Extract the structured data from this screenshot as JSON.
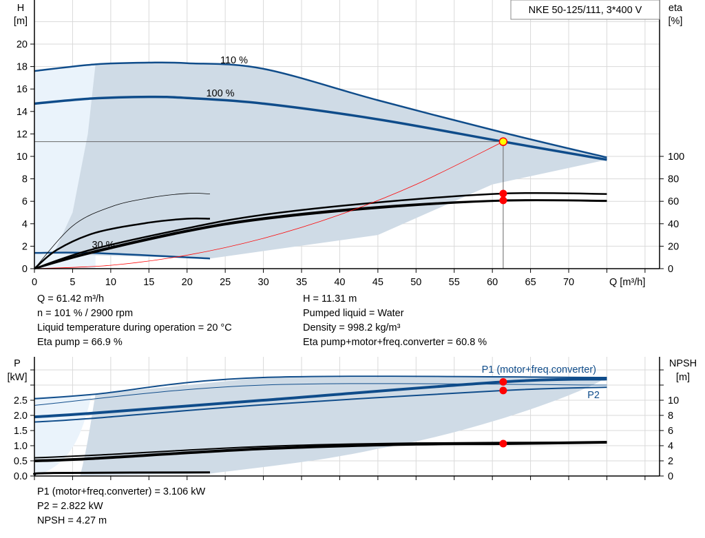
{
  "chart_data": [
    {
      "type": "line",
      "title": "NKE 50-125/111, 3*400 V",
      "xlabel": "Q [m³/h]",
      "ylabel": "H [m]",
      "ylabel_right": "eta [%]",
      "xlim": [
        0,
        82
      ],
      "ylim": [
        0,
        23.9
      ],
      "xticks": [
        0,
        5,
        10,
        15,
        20,
        25,
        30,
        35,
        40,
        45,
        50,
        55,
        60,
        65,
        70
      ],
      "yticks": [
        0,
        2,
        4,
        6,
        8,
        10,
        12,
        14,
        16,
        18,
        20
      ],
      "yticks_right": [
        0,
        20,
        40,
        60,
        80,
        100
      ],
      "grid": true,
      "series": [
        {
          "name": "110 %",
          "kind": "head",
          "x": [
            0,
            8,
            15,
            20,
            30,
            45,
            61.5,
            75
          ],
          "y": [
            17.6,
            18.2,
            18.35,
            18.3,
            17.8,
            15.0,
            12.1,
            9.9
          ]
        },
        {
          "name": "100 %",
          "kind": "head",
          "x": [
            0,
            7.5,
            15,
            20,
            30,
            45,
            61.42,
            75
          ],
          "y": [
            14.7,
            15.15,
            15.3,
            15.2,
            14.7,
            13.3,
            11.31,
            9.7
          ]
        },
        {
          "name": "30 %",
          "kind": "head",
          "x": [
            0,
            7.5,
            23
          ],
          "y": [
            1.4,
            1.4,
            0.9
          ]
        },
        {
          "kind": "eta",
          "x": [
            0,
            5,
            10,
            15,
            20,
            23
          ],
          "y": [
            0,
            38,
            55,
            63,
            67,
            66.5
          ]
        },
        {
          "kind": "eta",
          "x": [
            0,
            3,
            8,
            15,
            20,
            23
          ],
          "y": [
            0,
            17,
            32,
            41,
            44.5,
            44.5
          ]
        },
        {
          "kind": "eta",
          "x": [
            0,
            7.5,
            20,
            30,
            45,
            61.42,
            75
          ],
          "y": [
            0,
            17,
            36,
            48,
            59,
            66.9,
            66.5
          ]
        },
        {
          "kind": "eta",
          "x": [
            0,
            7.5,
            20,
            30,
            45,
            61.42,
            75
          ],
          "y": [
            0,
            15,
            34,
            45,
            55,
            60.8,
            60.5
          ]
        },
        {
          "kind": "eta",
          "x": [
            0,
            7.5,
            20,
            30,
            45,
            61.42,
            75
          ],
          "y": [
            0,
            14,
            33,
            44,
            54,
            60.5,
            60.2
          ]
        },
        {
          "kind": "system",
          "x": [
            0,
            10,
            20,
            30,
            40,
            50,
            61.42
          ],
          "y": [
            0,
            0.3,
            1.2,
            2.7,
            4.8,
            7.5,
            11.31
          ]
        }
      ],
      "duty_point": {
        "Q": 61.42,
        "H": 11.31,
        "eta_pump": 66.9,
        "eta_total": 60.8
      }
    },
    {
      "type": "line",
      "xlabel": "",
      "ylabel": "P [kW]",
      "ylabel_right": "NPSH [m]",
      "ylim": [
        0,
        3.93
      ],
      "yticks": [
        0.0,
        0.5,
        1.0,
        1.5,
        2.0,
        2.5
      ],
      "yticks_right": [
        0,
        2,
        4,
        6,
        8,
        10
      ],
      "grid": true,
      "series": [
        {
          "kind": "power",
          "x": [
            0,
            8,
            30,
            75
          ],
          "y": [
            2.55,
            2.7,
            3.25,
            3.25
          ]
        },
        {
          "kind": "power",
          "x": [
            0,
            30,
            75
          ],
          "y": [
            2.33,
            3.0,
            3.0
          ]
        },
        {
          "name": "P1 (motor+freq.converter)",
          "kind": "power",
          "x": [
            0,
            7.5,
            30,
            61.42,
            75
          ],
          "y": [
            1.95,
            2.07,
            2.5,
            3.106,
            3.2
          ]
        },
        {
          "name": "P2",
          "kind": "power",
          "x": [
            0,
            7.5,
            30,
            61.42,
            75
          ],
          "y": [
            1.78,
            1.9,
            2.35,
            2.822,
            2.93
          ]
        },
        {
          "kind": "npsh",
          "x": [
            0,
            8,
            30,
            50,
            75
          ],
          "y": [
            2.4,
            2.75,
            3.9,
            4.35,
            4.45
          ]
        },
        {
          "kind": "npsh",
          "x": [
            0,
            7.5,
            30,
            50,
            61.42,
            75
          ],
          "y": [
            2.0,
            2.3,
            3.6,
            4.2,
            4.27,
            4.45
          ]
        },
        {
          "kind": "power-low",
          "x": [
            0,
            2.5,
            23
          ],
          "y": [
            0.05,
            0.1,
            0.12
          ]
        }
      ],
      "duty_point": {
        "P1": 3.106,
        "P2": 2.822,
        "NPSH": 4.27
      }
    }
  ],
  "top_info": {
    "left": [
      "Q = 61.42 m³/h",
      "n = 101 % / 2900 rpm",
      "Liquid temperature during operation = 20 °C",
      "Eta pump = 66.9 %"
    ],
    "right": [
      "H = 11.31 m",
      "Pumped liquid = Water",
      "Density = 998.2 kg/m³",
      "Eta pump+motor+freq.converter = 60.8 %"
    ]
  },
  "bottom_info": [
    "P1 (motor+freq.converter) = 3.106 kW",
    "P2 = 2.822 kW",
    "NPSH = 4.27 m"
  ],
  "colors": {
    "blue": "#0f4c8a",
    "area": "#cfdbe6",
    "area_light": "#eaf3fb",
    "duty": "#ff0000",
    "marker": "#ffff00",
    "system": "#ff0000",
    "grid": "#d9d9d9"
  }
}
